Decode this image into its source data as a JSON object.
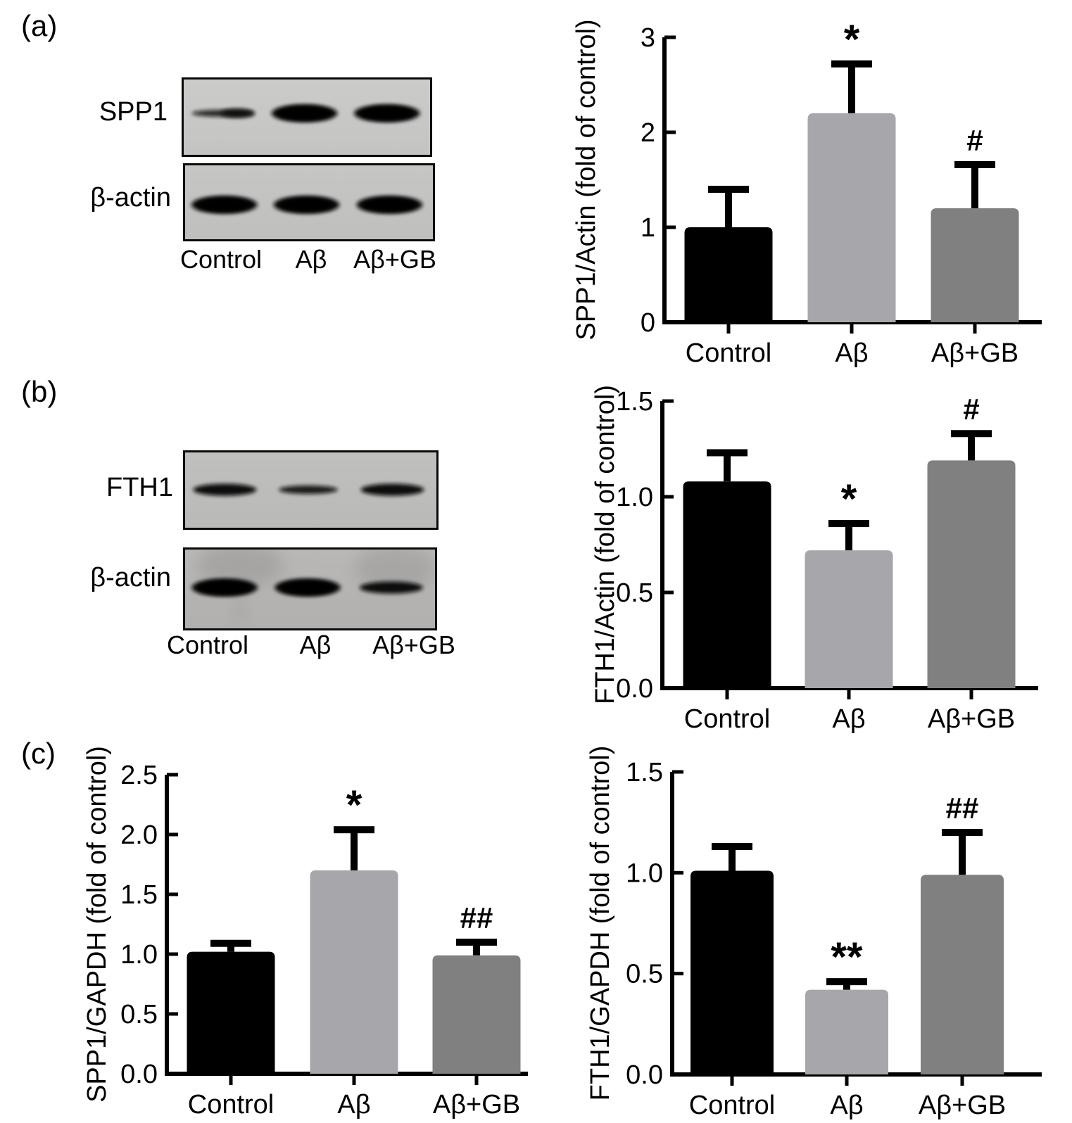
{
  "figure": {
    "background": "#ffffff"
  },
  "panels": {
    "a": {
      "label": "(a)",
      "blot": {
        "rows": [
          {
            "label": "SPP1",
            "bands": [
              "faint-thin",
              "strong",
              "strong"
            ]
          },
          {
            "label": "β-actin",
            "bands": [
              "strong",
              "strong",
              "strong"
            ]
          }
        ],
        "lane_labels": [
          "Control",
          "Aβ",
          "Aβ+GB"
        ]
      }
    },
    "b": {
      "label": "(b)",
      "blot": {
        "rows": [
          {
            "label": "FTH1",
            "bands": [
              "medium",
              "thin",
              "medium"
            ]
          },
          {
            "label": "β-actin",
            "bands": [
              "strong",
              "strong",
              "medium"
            ]
          }
        ],
        "lane_labels": [
          "Control",
          "Aβ",
          "Aβ+GB"
        ]
      }
    },
    "c": {
      "label": "(c)"
    }
  },
  "colors": {
    "control_bar": "#000000",
    "ab_bar": "#A7A7AB",
    "ab_gb_bar": "#808080",
    "axis": "#000000",
    "blot_band": "#0d0d0d"
  },
  "chart_data": [
    {
      "id": "chart-a",
      "type": "bar",
      "title": "",
      "ylabel": "SPP1/Actin (fold of control)",
      "xlabel": "",
      "categories": [
        "Control",
        "Aβ",
        "Aβ+GB"
      ],
      "values": [
        1.0,
        2.2,
        1.2
      ],
      "errors_up": [
        0.4,
        0.52,
        0.46
      ],
      "annotations": [
        "",
        "*",
        "#"
      ],
      "ylim": [
        0,
        3
      ],
      "yticks": [
        0,
        1,
        2,
        3
      ],
      "ytick_labels": [
        "0",
        "1",
        "2",
        "3"
      ],
      "bar_colors": [
        "#000000",
        "#A7A7AB",
        "#808080"
      ],
      "grid": false,
      "legend": "none"
    },
    {
      "id": "chart-b",
      "type": "bar",
      "title": "",
      "ylabel": "FTH1/Actin (fold of control)",
      "xlabel": "",
      "categories": [
        "Control",
        "Aβ",
        "Aβ+GB"
      ],
      "values": [
        1.08,
        0.72,
        1.19
      ],
      "errors_up": [
        0.15,
        0.14,
        0.14
      ],
      "annotations": [
        "",
        "*",
        "#"
      ],
      "ylim": [
        0,
        1.5
      ],
      "yticks": [
        0,
        0.5,
        1.0,
        1.5
      ],
      "ytick_labels": [
        "0.0",
        "0.5",
        "1.0",
        "1.5"
      ],
      "bar_colors": [
        "#000000",
        "#A7A7AB",
        "#808080"
      ],
      "grid": false,
      "legend": "none"
    },
    {
      "id": "chart-c-left",
      "type": "bar",
      "title": "",
      "ylabel": "SPP1/GAPDH (fold of control)",
      "xlabel": "",
      "categories": [
        "Control",
        "Aβ",
        "Aβ+GB"
      ],
      "values": [
        1.02,
        1.7,
        0.99
      ],
      "errors_up": [
        0.07,
        0.34,
        0.11
      ],
      "annotations": [
        "",
        "*",
        "##"
      ],
      "ylim": [
        0,
        2.5
      ],
      "yticks": [
        0,
        0.5,
        1.0,
        1.5,
        2.0,
        2.5
      ],
      "ytick_labels": [
        "0.0",
        "0.5",
        "1.0",
        "1.5",
        "2.0",
        "2.5"
      ],
      "bar_colors": [
        "#000000",
        "#A7A7AB",
        "#808080"
      ],
      "grid": false,
      "legend": "none"
    },
    {
      "id": "chart-c-right",
      "type": "bar",
      "title": "",
      "ylabel": "FTH1/GAPDH (fold of control)",
      "xlabel": "",
      "categories": [
        "Control",
        "Aβ",
        "Aβ+GB"
      ],
      "values": [
        1.01,
        0.42,
        0.99
      ],
      "errors_up": [
        0.12,
        0.04,
        0.21
      ],
      "annotations": [
        "",
        "**",
        "##"
      ],
      "ylim": [
        0,
        1.5
      ],
      "yticks": [
        0,
        0.5,
        1.0,
        1.5
      ],
      "ytick_labels": [
        "0.0",
        "0.5",
        "1.0",
        "1.5"
      ],
      "bar_colors": [
        "#000000",
        "#A7A7AB",
        "#808080"
      ],
      "grid": false,
      "legend": "none"
    }
  ]
}
